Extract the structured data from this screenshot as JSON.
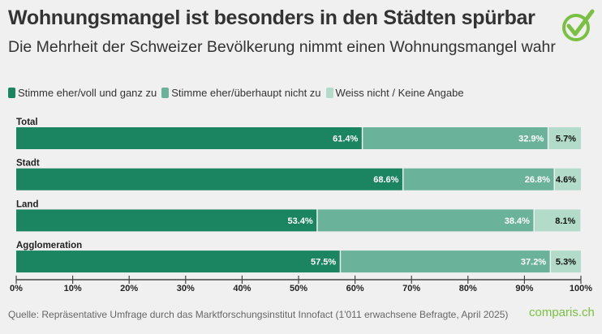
{
  "title": "Wohnungsmangel ist besonders in den Städten spürbar",
  "subtitle": "Die Mehrheit der Schweizer Bevölkerung nimmt einen Wohnungsmangel wahr",
  "source": "Quelle: Repräsentative Umfrage durch das Marktforschungsinstitut Innofact (1'011 erwachsene Befragte, April 2025)",
  "logo": "comparis.ch",
  "colors": {
    "agree": "#1b8460",
    "disagree": "#6ab39a",
    "unknown": "#b3dbc9",
    "logo": "#7ac143"
  },
  "chart_data": {
    "type": "bar",
    "orientation": "horizontal",
    "stacked": true,
    "categories": [
      "Total",
      "Stadt",
      "Land",
      "Agglomeration"
    ],
    "series": [
      {
        "name": "Stimme eher/voll und ganz zu",
        "values": [
          61.4,
          68.6,
          53.4,
          57.5
        ]
      },
      {
        "name": "Stimme eher/überhaupt nicht zu",
        "values": [
          32.9,
          26.8,
          38.4,
          37.2
        ]
      },
      {
        "name": "Weiss nicht / Keine Angabe",
        "values": [
          5.7,
          4.6,
          8.1,
          5.3
        ]
      }
    ],
    "xlim": [
      0,
      100
    ],
    "xticks": [
      "0%",
      "10%",
      "20%",
      "30%",
      "40%",
      "50%",
      "60%",
      "70%",
      "80%",
      "90%",
      "100%"
    ],
    "legend": "top-left",
    "grid": false
  }
}
